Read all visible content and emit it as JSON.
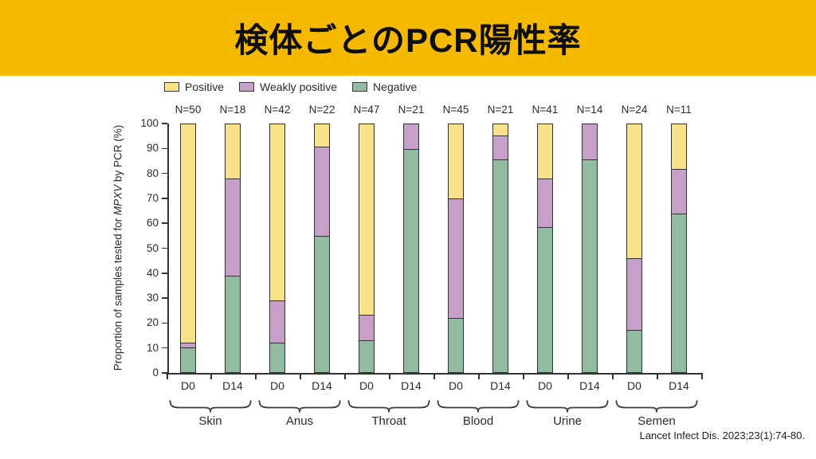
{
  "header": {
    "title": "検体ごとのPCR陽性率",
    "bg_color": "#F5B900",
    "text_color": "#0D0D0D"
  },
  "citation": "Lancet Infect Dis. 2023;23(1):74-80.",
  "chart_data": {
    "type": "bar",
    "stacked": true,
    "title": "",
    "ylabel_parts": {
      "pre": "Proportion of samples tested for ",
      "em": "MPXV",
      "post": " by PCR (%)"
    },
    "ylim": [
      0,
      100
    ],
    "yticks": [
      0,
      10,
      20,
      30,
      40,
      50,
      60,
      70,
      80,
      90,
      100
    ],
    "grid": false,
    "legend_position": "top-left",
    "stack_order": [
      "negative",
      "weakly_positive",
      "positive"
    ],
    "legend": [
      {
        "key": "positive",
        "name": "Positive",
        "color": "#F8E289"
      },
      {
        "key": "weakly_positive",
        "name": "Weakly positive",
        "color": "#C6A0C8"
      },
      {
        "key": "negative",
        "name": "Negative",
        "color": "#92BCA1"
      }
    ],
    "groups": [
      "Skin",
      "Anus",
      "Throat",
      "Blood",
      "Urine",
      "Semen"
    ],
    "timepoints": [
      "D0",
      "D14"
    ],
    "bars": [
      {
        "group": "Skin",
        "label": "D0",
        "n": "N=50",
        "negative": 10,
        "weakly_positive": 2,
        "positive": 88
      },
      {
        "group": "Skin",
        "label": "D14",
        "n": "N=18",
        "negative": 39,
        "weakly_positive": 39,
        "positive": 22
      },
      {
        "group": "Anus",
        "label": "D0",
        "n": "N=42",
        "negative": 12,
        "weakly_positive": 17,
        "positive": 71
      },
      {
        "group": "Anus",
        "label": "D14",
        "n": "N=22",
        "negative": 55,
        "weakly_positive": 36,
        "positive": 9
      },
      {
        "group": "Throat",
        "label": "D0",
        "n": "N=47",
        "negative": 13,
        "weakly_positive": 10,
        "positive": 77
      },
      {
        "group": "Throat",
        "label": "D14",
        "n": "N=21",
        "negative": 90,
        "weakly_positive": 10,
        "positive": 0
      },
      {
        "group": "Blood",
        "label": "D0",
        "n": "N=45",
        "negative": 22,
        "weakly_positive": 48,
        "positive": 30
      },
      {
        "group": "Blood",
        "label": "D14",
        "n": "N=21",
        "negative": 86,
        "weakly_positive": 9.5,
        "positive": 4.5
      },
      {
        "group": "Urine",
        "label": "D0",
        "n": "N=41",
        "negative": 58.5,
        "weakly_positive": 19.5,
        "positive": 22
      },
      {
        "group": "Urine",
        "label": "D14",
        "n": "N=14",
        "negative": 86,
        "weakly_positive": 14,
        "positive": 0
      },
      {
        "group": "Semen",
        "label": "D0",
        "n": "N=24",
        "negative": 17,
        "weakly_positive": 29,
        "positive": 54
      },
      {
        "group": "Semen",
        "label": "D14",
        "n": "N=11",
        "negative": 64,
        "weakly_positive": 18,
        "positive": 18
      }
    ]
  }
}
